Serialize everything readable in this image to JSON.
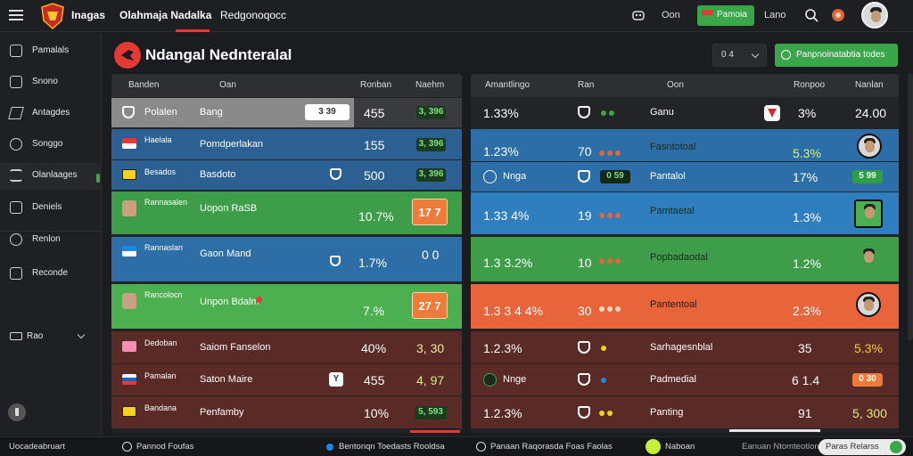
{
  "topbar": {
    "brand": "Inagas",
    "nav": [
      "Olahmaja Nadalka",
      "Redgonoqocc"
    ],
    "oon_label": "Oon",
    "live_label": "Pamoia",
    "lano_label": "Lano"
  },
  "sidebar": {
    "items": [
      "Pamalals",
      "Snono",
      "Antagdes",
      "Songgo",
      "Olanlaages",
      "Deniels",
      "Renlon",
      "Reconde"
    ],
    "settings_label": "Rao"
  },
  "header": {
    "title": "Ndangal Nednteralal",
    "select_value": "0 4",
    "cta_label": "Panpnoinatabtia todes"
  },
  "left_table": {
    "headers": [
      "Banden",
      "Oan",
      "Ronban",
      "Naehm"
    ],
    "rows": [
      {
        "name": "Polalen",
        "team": "Bang",
        "tag": "3 39",
        "value": "455",
        "score": "3, 396",
        "bg": "#8b8b8b"
      },
      {
        "name": "Haelala",
        "team": "Pomdperlakan",
        "tag": "",
        "value": "155",
        "score": "3, 396",
        "bg": "#2d5f93"
      },
      {
        "name": "Besados",
        "team": "Basdoto",
        "tag": "",
        "value": "500",
        "score": "3, 396",
        "bg": "#2d5f93"
      },
      {
        "name": "Rannasalen",
        "team": "Uopon RaSB",
        "tag": "",
        "value": "10.7%",
        "score": "17 7",
        "bg": "#3f9e4a"
      },
      {
        "name": "Rannaslan",
        "team": "Gaon Mand",
        "tag": "",
        "value": "1.7%",
        "score": "0 0",
        "bg": "#2f6fa8"
      },
      {
        "name": "Rancolocn",
        "team": "Unpon Bdalm",
        "tag": "",
        "value": "7.%",
        "score": "27 7",
        "bg": "#4caf50"
      },
      {
        "name": "Dedoban",
        "team": "Saiom Fanselon",
        "tag": "",
        "value": "40%",
        "score": "3, 30",
        "bg": "#5a2a27"
      },
      {
        "name": "Pamalan",
        "team": "Saton Maire",
        "tag": "",
        "value": "455",
        "score": "4, 97",
        "bg": "#5a2a27"
      },
      {
        "name": "Bandana",
        "team": "Penfamby",
        "tag": "",
        "value": "10%",
        "score": "5, 593",
        "bg": "#5a2a27"
      }
    ]
  },
  "right_table": {
    "headers": [
      "Amantlingo",
      "Ran",
      "Oon",
      "Ronpoo",
      "Nanlan"
    ],
    "rows": [
      {
        "odds": "1.33%",
        "ran": "",
        "team": "Ganu",
        "pct": "3%",
        "nan": "24.00",
        "bg": "#232428"
      },
      {
        "odds": "1.23%",
        "ran": "70",
        "team": "Fasntotoal",
        "pct": "5.3%",
        "nan": "",
        "bg": "#2d6fa8"
      },
      {
        "odds": "Nnga",
        "ran": "",
        "team": "Pantalol",
        "pct": "17%",
        "nan": "5 99",
        "bg": "#2d6fa8"
      },
      {
        "odds": "1.33 4%",
        "ran": "19",
        "team": "Pamtaetal",
        "pct": "1.3%",
        "nan": "",
        "bg": "#2f7ec0"
      },
      {
        "odds": "1.3 3.2%",
        "ran": "10",
        "team": "Popbadaodal",
        "pct": "1.2%",
        "nan": "",
        "bg": "#3f9e4a"
      },
      {
        "odds": "1.3 3 4 4%",
        "ran": "30",
        "team": "Pantentoal",
        "pct": "2.3%",
        "nan": "",
        "bg": "#e8643a"
      },
      {
        "odds": "1.2.3%",
        "ran": "",
        "team": "Sarhagesnblal",
        "pct": "35",
        "nan": "5.3%",
        "bg": "#5a2a27"
      },
      {
        "odds": "Nnge",
        "ran": "",
        "team": "Padmedial",
        "pct": "6 1.4",
        "nan": "0 30",
        "bg": "#5a2a27"
      },
      {
        "odds": "1.2.3%",
        "ran": "",
        "team": "Panting",
        "pct": "91",
        "nan": "5, 300",
        "bg": "#5a2a27"
      }
    ]
  },
  "bottombar": {
    "left": "Uocadeabruart",
    "item1": "Pannod Foufas",
    "item2": "Bentonqn Toedasts Rooldsa",
    "item3": "Panaan Raqorasda Foas Faolas",
    "item4": "Naboan",
    "item5": "Eanuan Ntomteotion",
    "button": "Paras Relarss"
  }
}
